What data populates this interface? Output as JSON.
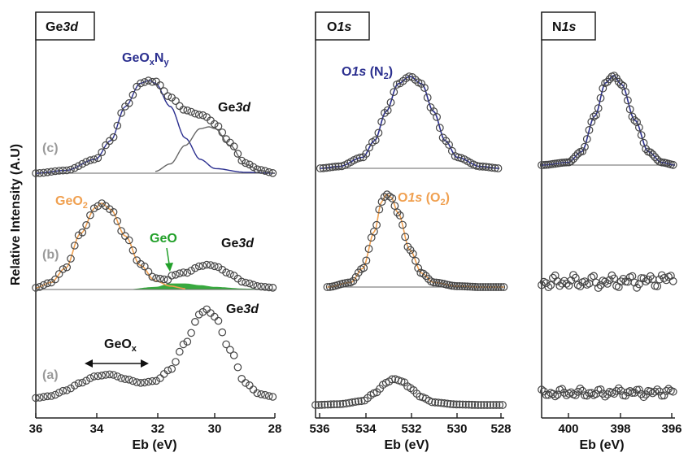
{
  "ylabel": "Relative Intensity (A.U)",
  "colors": {
    "blue": "#2b2f8f",
    "orange": "#f0a050",
    "green": "#22a02a",
    "gray_line": "#666666",
    "trace_label": "#9a9a9a",
    "marker": "#444444"
  },
  "chart_data": [
    {
      "type": "line",
      "title": "Ge3d",
      "xlabel": "Eb (eV)",
      "xlim": [
        36,
        28
      ],
      "xticks": [
        "36",
        "34",
        "32",
        "30",
        "28"
      ],
      "traces": [
        {
          "label": "(a)",
          "x": [
            36.0,
            35.5,
            35.0,
            34.5,
            34.0,
            33.5,
            33.0,
            32.5,
            32.0,
            31.5,
            31.0,
            30.5,
            30.3,
            30.0,
            29.5,
            29.0,
            28.5,
            28.0
          ],
          "y": [
            0.04,
            0.06,
            0.12,
            0.2,
            0.27,
            0.29,
            0.24,
            0.2,
            0.22,
            0.34,
            0.62,
            0.93,
            0.98,
            0.9,
            0.55,
            0.2,
            0.08,
            0.05
          ],
          "annotations": [
            "GeOx",
            "Ge3d"
          ]
        },
        {
          "label": "(b)",
          "series": [
            {
              "name": "GeO2",
              "x": [
                36.0,
                35.5,
                35.0,
                34.5,
                34.0,
                33.8,
                33.5,
                33.0,
                32.5,
                32.0,
                31.5,
                31.0
              ],
              "y": [
                0.02,
                0.08,
                0.25,
                0.65,
                0.95,
                1.0,
                0.93,
                0.62,
                0.28,
                0.1,
                0.04,
                0.01
              ]
            },
            {
              "name": "GeO",
              "x": [
                33.0,
                32.0,
                31.5,
                31.0,
                30.5,
                30.0,
                29.0,
                28.0
              ],
              "y": [
                0.0,
                0.03,
                0.07,
                0.07,
                0.05,
                0.03,
                0.01,
                0.0
              ]
            },
            {
              "name": "Ge3d",
              "x": [
                31.5,
                31.0,
                30.5,
                30.2,
                30.0,
                29.5,
                29.0,
                28.5,
                28.0
              ],
              "y": [
                0.05,
                0.12,
                0.22,
                0.25,
                0.24,
                0.16,
                0.07,
                0.03,
                0.02
              ]
            }
          ]
        },
        {
          "label": "(c)",
          "series": [
            {
              "name": "GeOxNy",
              "x": [
                36.0,
                35.0,
                34.0,
                33.5,
                33.0,
                32.5,
                32.2,
                32.0,
                31.5,
                31.0,
                30.5,
                30.0,
                29.0,
                28.0
              ],
              "y": [
                0.0,
                0.03,
                0.15,
                0.35,
                0.72,
                0.97,
                1.0,
                0.97,
                0.72,
                0.38,
                0.15,
                0.05,
                0.01,
                0.0
              ]
            },
            {
              "name": "Ge3d",
              "x": [
                32.0,
                31.5,
                31.0,
                30.5,
                30.2,
                30.0,
                29.5,
                29.0,
                28.5,
                28.0
              ],
              "y": [
                0.02,
                0.1,
                0.3,
                0.48,
                0.5,
                0.48,
                0.3,
                0.1,
                0.03,
                0.0
              ]
            }
          ]
        }
      ],
      "labels": {
        "title_main": "Ge",
        "title_italic": "3d",
        "geoxny": "GeOxNy",
        "geo2": "GeO2",
        "geo": "GeO",
        "geox": "GeOx",
        "ge3d_c": "Ge3d",
        "ge3d_b": "Ge3d",
        "ge3d_a": "Ge3d",
        "a": "(a)",
        "b": "(b)",
        "c": "(c)"
      }
    },
    {
      "type": "line",
      "title": "O1s",
      "xlabel": "Eb (eV)",
      "xlim": [
        536,
        528
      ],
      "xticks": [
        "536",
        "534",
        "532",
        "530",
        "528"
      ],
      "traces": [
        {
          "label": "(a)",
          "x": [
            536,
            535,
            534,
            533.5,
            533,
            532.7,
            532.3,
            532,
            531.5,
            531,
            530,
            529,
            528
          ],
          "y": [
            0.0,
            0.03,
            0.15,
            0.45,
            0.85,
            1.0,
            0.9,
            0.65,
            0.3,
            0.1,
            0.02,
            0.0,
            0.0
          ]
        },
        {
          "label": "(b)",
          "name": "O1s (O2)",
          "x": [
            535.5,
            534.5,
            534,
            533.5,
            533.2,
            533,
            532.8,
            532.5,
            532,
            531.5,
            531,
            530,
            529,
            528
          ],
          "y": [
            0.0,
            0.05,
            0.2,
            0.6,
            0.92,
            1.0,
            0.97,
            0.8,
            0.4,
            0.15,
            0.05,
            0.01,
            0.0,
            0.0
          ]
        },
        {
          "label": "(c)",
          "name": "O1s (N2)",
          "x": [
            535.8,
            535,
            534,
            533.5,
            533,
            532.5,
            532,
            531.5,
            531,
            530.5,
            530,
            529,
            528.2
          ],
          "y": [
            0.0,
            0.02,
            0.12,
            0.3,
            0.62,
            0.92,
            1.0,
            0.92,
            0.62,
            0.3,
            0.12,
            0.02,
            0.0
          ]
        }
      ],
      "labels": {
        "title_main": "O",
        "title_italic": "1s",
        "o1s_n2": "O1s (N2)",
        "o1s_o2": "O1s (O2)"
      }
    },
    {
      "type": "line",
      "title": "N1s",
      "xlabel": "Eb (eV)",
      "xlim": [
        401,
        396
      ],
      "xticks": [
        "400",
        "398",
        "396"
      ],
      "traces": [
        {
          "label": "(a)",
          "x": [
            401,
            400,
            399,
            398,
            397,
            396
          ],
          "y": [
            0.03,
            0.05,
            0.04,
            0.06,
            0.05,
            0.08
          ]
        },
        {
          "label": "(b)",
          "x": [
            401,
            400,
            399,
            398,
            397,
            396
          ],
          "y": [
            0.04,
            0.06,
            0.05,
            0.07,
            0.08,
            0.12
          ]
        },
        {
          "label": "(c)",
          "x": [
            401,
            400,
            399.5,
            399,
            398.6,
            398.3,
            398,
            397.5,
            397,
            396.5,
            396
          ],
          "y": [
            0.0,
            0.03,
            0.15,
            0.55,
            0.92,
            1.0,
            0.9,
            0.5,
            0.15,
            0.03,
            0.0
          ]
        }
      ],
      "labels": {
        "title_main": "N",
        "title_italic": "1s"
      }
    }
  ]
}
